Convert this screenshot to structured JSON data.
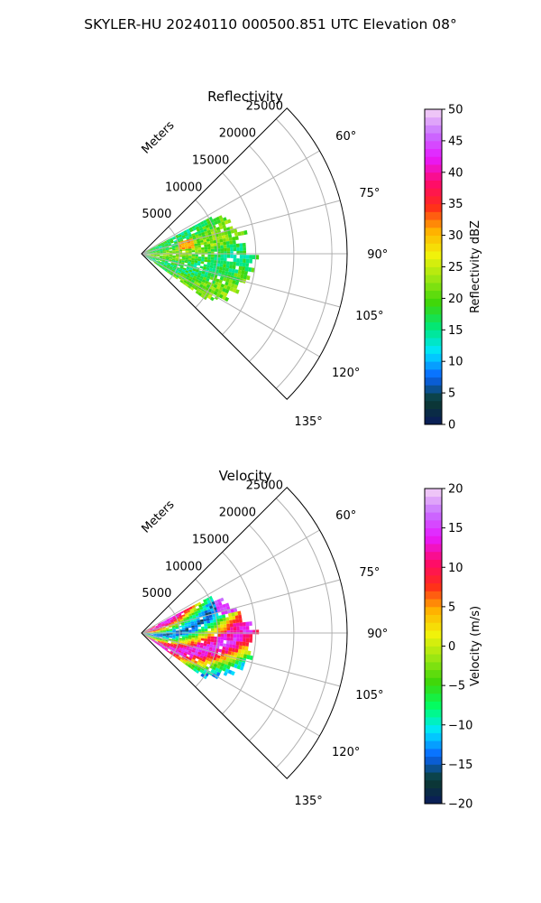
{
  "figure_title": "SKYLER-HU  20240110  000500.851 UTC Elevation 08°",
  "colors": {
    "refl_stops": [
      "#0a1a5c",
      "#0b3d2e",
      "#0a66ff",
      "#00e5ff",
      "#00e87a",
      "#3cd60a",
      "#9ae612",
      "#f2f20a",
      "#ffb000",
      "#ff2a1a",
      "#ff0a6e",
      "#e61aff",
      "#c870ff",
      "#f5d6f5"
    ],
    "vel_stops": [
      "#0a1a5c",
      "#0b3d2e",
      "#0a66ff",
      "#00e5ff",
      "#00ff66",
      "#3cd60a",
      "#9ae612",
      "#f2f20a",
      "#ffb000",
      "#ff2a1a",
      "#ff0a6e",
      "#e61aff",
      "#c870ff",
      "#f5d6f5"
    ]
  },
  "chart_data": [
    {
      "type": "heatmap",
      "projection": "polar-sector",
      "title": "Reflectivity",
      "radial_label": "Meters",
      "radial_ticks": [
        5000,
        10000,
        15000,
        20000,
        25000
      ],
      "radial_tick_labels": [
        "5000",
        "10000",
        "15000",
        "20000",
        "25000"
      ],
      "r_max": 27000,
      "angle_ticks": [
        60,
        75,
        90,
        105,
        120,
        135
      ],
      "angle_tick_labels": [
        "60°",
        "75°",
        "90°",
        "105°",
        "120°",
        "135°"
      ],
      "theta_range": [
        45,
        135
      ],
      "data_theta_range": [
        62,
        125
      ],
      "data_r_range": [
        0,
        15000
      ],
      "grid": true,
      "colorbar": {
        "label": "Reflectivity dBZ",
        "range": [
          0,
          50
        ],
        "ticks": [
          0,
          5,
          10,
          15,
          20,
          25,
          30,
          35,
          40,
          45,
          50
        ],
        "tick_labels": [
          "0",
          "5",
          "10",
          "15",
          "20",
          "25",
          "30",
          "35",
          "40",
          "45",
          "50"
        ]
      },
      "field_summary": "mostly 15–25 dBZ (green/yellow), isolated maxima near 30–33 dBZ"
    },
    {
      "type": "heatmap",
      "projection": "polar-sector",
      "title": "Velocity",
      "radial_label": "Meters",
      "radial_ticks": [
        5000,
        10000,
        15000,
        20000,
        25000
      ],
      "radial_tick_labels": [
        "5000",
        "10000",
        "15000",
        "20000",
        "25000"
      ],
      "r_max": 27000,
      "angle_ticks": [
        60,
        75,
        90,
        105,
        120,
        135
      ],
      "angle_tick_labels": [
        "60°",
        "75°",
        "90°",
        "105°",
        "120°",
        "135°"
      ],
      "theta_range": [
        45,
        135
      ],
      "data_theta_range": [
        62,
        125
      ],
      "data_r_range": [
        0,
        15000
      ],
      "grid": true,
      "colorbar": {
        "label": "Velocity (m/s)",
        "range": [
          -20,
          20
        ],
        "ticks": [
          -20,
          -15,
          -10,
          -5,
          0,
          5,
          10,
          15,
          20
        ],
        "tick_labels": [
          "−20",
          "−15",
          "−10",
          "−5",
          "0",
          "5",
          "10",
          "15",
          "20"
        ]
      },
      "field_summary": "banded/aliased pattern from about −13 to +17 m/s"
    }
  ]
}
